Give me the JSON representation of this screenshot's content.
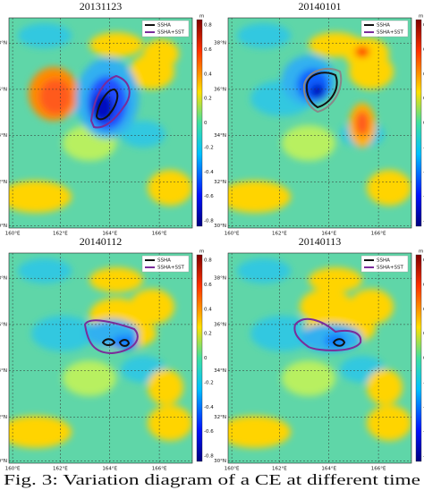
{
  "panels": [
    {
      "title": "20131123",
      "legend": [
        "SSHA",
        "SSHA+SST"
      ]
    },
    {
      "title": "20140101",
      "legend": [
        "SSHA",
        "SSHA+SST"
      ]
    },
    {
      "title": "20140112",
      "legend": [
        "SSHA",
        "SSHA+SST"
      ]
    },
    {
      "title": "20140113",
      "legend": [
        "SSHA",
        "SSHA+SST"
      ]
    }
  ],
  "lat_labels": [
    "38°N",
    "36°N",
    "34°N",
    "32°N",
    "30°N"
  ],
  "lon_labels": [
    "160°E",
    "162°E",
    "164°E",
    "166°E"
  ],
  "colorbar": {
    "unit": "m",
    "ticks": [
      "0.8",
      "0.6",
      "0.4",
      "0.2",
      "0",
      "-0.2",
      "-0.4",
      "-0.6",
      "-0.8"
    ]
  },
  "caption": "Fig. 3: Variation diagram of a CE at different time"
}
